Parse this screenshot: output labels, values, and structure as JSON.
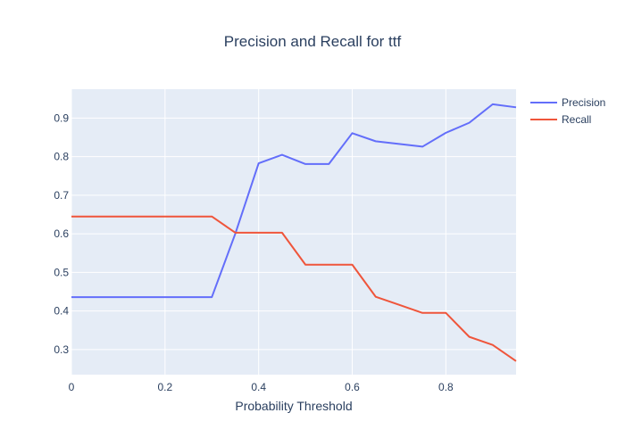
{
  "chart_data": {
    "type": "line",
    "title": "Precision and Recall for ttf",
    "xlabel": "Probability Threshold",
    "ylabel": "",
    "xlim": [
      0,
      0.95
    ],
    "ylim": [
      0.235,
      0.975
    ],
    "grid": true,
    "legend_position": "top-right",
    "x_ticks": [
      0,
      0.2,
      0.4,
      0.6,
      0.8
    ],
    "x_tick_labels": [
      "0",
      "0.2",
      "0.4",
      "0.6",
      "0.8"
    ],
    "y_ticks": [
      0.3,
      0.4,
      0.5,
      0.6,
      0.7,
      0.8,
      0.9
    ],
    "y_tick_labels": [
      "0.3",
      "0.4",
      "0.5",
      "0.6",
      "0.7",
      "0.8",
      "0.9"
    ],
    "x": [
      0,
      0.05,
      0.1,
      0.15,
      0.2,
      0.25,
      0.3,
      0.35,
      0.4,
      0.45,
      0.5,
      0.55,
      0.6,
      0.65,
      0.7,
      0.75,
      0.8,
      0.85,
      0.9,
      0.95
    ],
    "series": [
      {
        "name": "Precision",
        "color": "#636efa",
        "values": [
          0.436,
          0.436,
          0.436,
          0.436,
          0.436,
          0.436,
          0.436,
          0.6,
          0.783,
          0.805,
          0.781,
          0.781,
          0.861,
          0.84,
          0.833,
          0.826,
          0.862,
          0.888,
          0.936,
          0.928
        ]
      },
      {
        "name": "Recall",
        "color": "#ef553b",
        "values": [
          0.645,
          0.645,
          0.645,
          0.645,
          0.645,
          0.645,
          0.645,
          0.603,
          0.603,
          0.603,
          0.52,
          0.52,
          0.52,
          0.437,
          0.416,
          0.395,
          0.395,
          0.333,
          0.312,
          0.27
        ]
      }
    ]
  }
}
